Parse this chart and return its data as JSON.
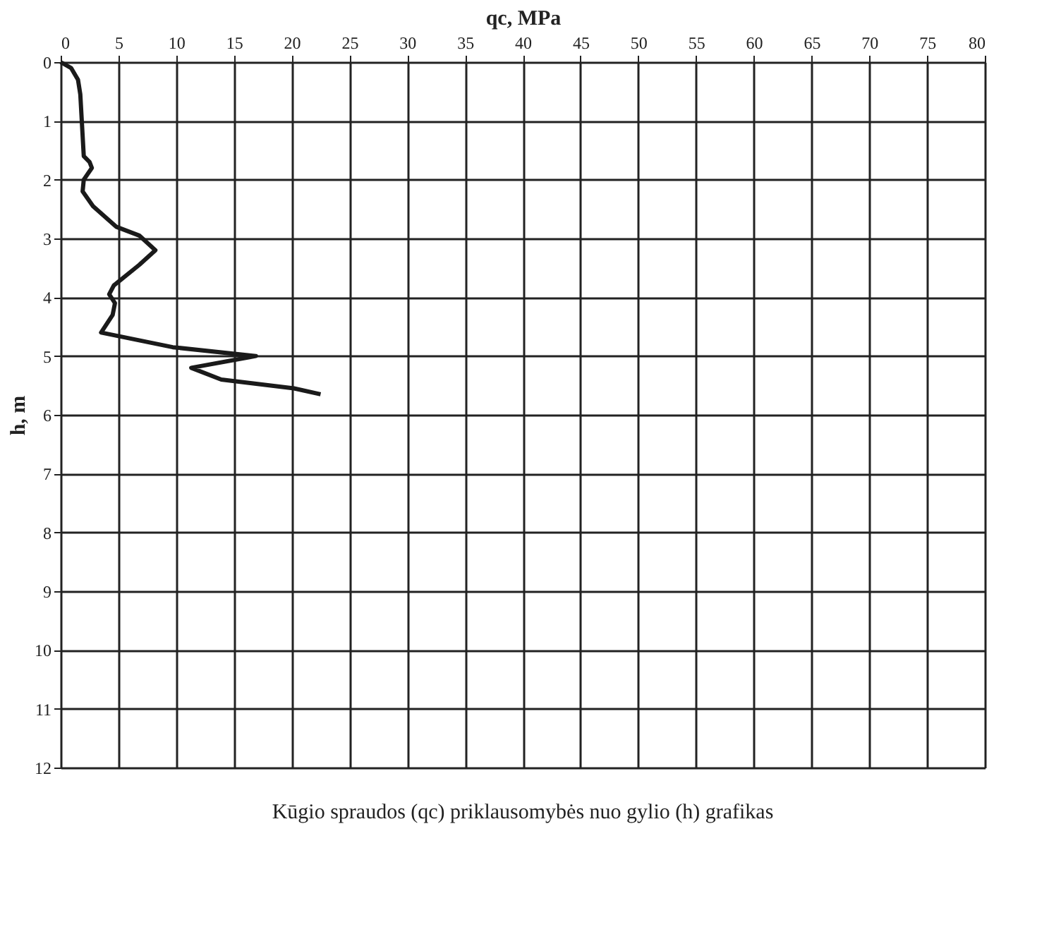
{
  "chart_data": {
    "type": "line",
    "xlabel": "qc, MPa",
    "ylabel": "h, m",
    "annotations": [
      "Kūgio spraudos (qc) priklausomybės nuo gylio (h) grafikas"
    ],
    "series": [
      {
        "color": "#1a1a1a",
        "x": [
          0,
          0.9,
          1.5,
          1.7,
          2.0,
          2.5,
          2.7,
          2.0,
          1.9,
          2.8,
          4.8,
          6.8,
          8.2,
          6.8,
          4.6,
          4.2,
          4.7,
          4.5,
          3.5,
          9.7,
          16.9,
          11.3,
          13.9,
          20.2,
          22.5
        ],
        "values": [
          0,
          0.1,
          0.3,
          0.55,
          1.6,
          1.7,
          1.8,
          2.0,
          2.2,
          2.45,
          2.8,
          2.95,
          3.2,
          3.45,
          3.8,
          3.95,
          4.1,
          4.3,
          4.6,
          4.85,
          5.0,
          5.2,
          5.4,
          5.55,
          5.65
        ]
      }
    ],
    "xlim": [
      0,
      80
    ],
    "xticks": [
      0,
      5,
      10,
      15,
      20,
      25,
      30,
      35,
      40,
      45,
      50,
      55,
      60,
      65,
      70,
      75,
      80
    ],
    "ylim": [
      12,
      0
    ],
    "yticks": [
      0,
      1,
      2,
      3,
      4,
      5,
      6,
      7,
      8,
      9,
      10,
      11,
      12
    ],
    "grid": true,
    "marker": "none",
    "line_style": "solid"
  }
}
